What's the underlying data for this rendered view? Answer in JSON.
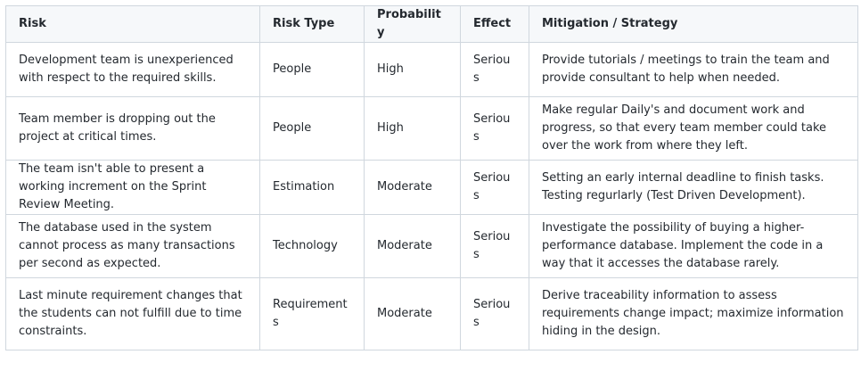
{
  "table": {
    "headers": {
      "risk": "Risk",
      "risk_type": "Risk Type",
      "probability": "Probability",
      "effect": "Effect",
      "mitigation": "Mitigation / Strategy"
    },
    "rows": [
      {
        "risk": "Development team is unexperienced with respect to the required skills.",
        "risk_type": "People",
        "probability": "High",
        "effect": "Serious",
        "mitigation": "Provide tutorials / meetings to train the team and provide consultant to help when needed."
      },
      {
        "risk": "Team member is dropping out the project at critical times.",
        "risk_type": "People",
        "probability": "High",
        "effect": "Serious",
        "mitigation": "Make regular Daily's and document work and progress, so that every team member could take over the work from where they left."
      },
      {
        "risk": "The team isn't able to present a working increment on the Sprint Review Meeting.",
        "risk_type": "Estimation",
        "probability": "Moderate",
        "effect": "Serious",
        "mitigation": "Setting an early internal deadline to finish tasks. Testing regurlarly (Test Driven Development)."
      },
      {
        "risk": "The database used in the system cannot process as many transactions per second as expected.",
        "risk_type": "Technology",
        "probability": "Moderate",
        "effect": "Serious",
        "mitigation": "Investigate the possibility of buying a higher-performance database. Implement the code in a way that it accesses the database rarely."
      },
      {
        "risk": "Last minute requirement changes that the students can not fulfill due to time constraints.",
        "risk_type": "Requirements",
        "probability": "Moderate",
        "effect": "Serious",
        "mitigation": "Derive traceability information to assess requirements change impact; maximize information hiding in the design."
      }
    ]
  }
}
